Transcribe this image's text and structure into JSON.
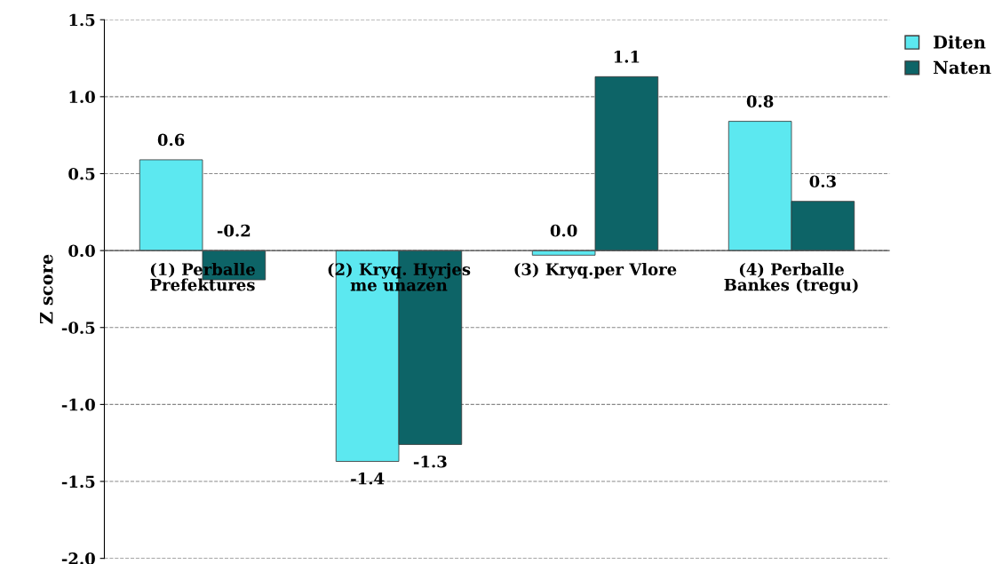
{
  "chart_data": {
    "type": "bar",
    "ylabel": "Z score",
    "categories": [
      "(1) Perballe\nPrefektures",
      "(2) Kryq. Hyrjes\nme unazen",
      "(3) Kryq.per Vlore",
      "(4) Perballe\nBankes (tregu)"
    ],
    "series": [
      {
        "name": "Diten",
        "color": "#5ce8f0",
        "values": [
          0.59,
          -1.37,
          -0.03,
          0.84
        ],
        "value_labels": [
          "0.6",
          "-1.4",
          "0.0",
          "0.8"
        ]
      },
      {
        "name": "Naten",
        "color": "#0d6467",
        "values": [
          -0.19,
          -1.26,
          1.13,
          0.32
        ],
        "value_labels": [
          "-0.2",
          "-1.3",
          "1.1",
          "0.3"
        ]
      }
    ],
    "ylim": [
      -2.0,
      1.5
    ],
    "yticks": [
      {
        "value": -2.0,
        "label": "-2.0"
      },
      {
        "value": -1.5,
        "label": "-1.5"
      },
      {
        "value": -1.0,
        "label": "-1.0"
      },
      {
        "value": -0.5,
        "label": "-0.5"
      },
      {
        "value": 0.0,
        "label": "0.0"
      },
      {
        "value": 0.5,
        "label": "0.5"
      },
      {
        "value": 1.0,
        "label": "1.0"
      },
      {
        "value": 1.5,
        "label": "1.5"
      }
    ],
    "grid": "y",
    "legend": "top right"
  }
}
